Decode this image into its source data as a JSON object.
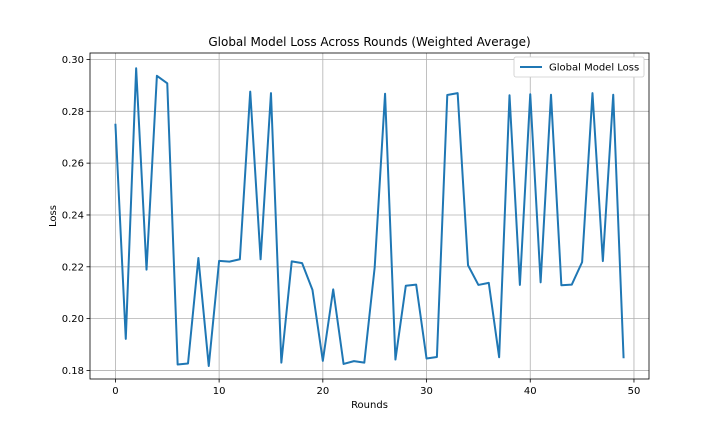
{
  "chart_data": {
    "type": "line",
    "title": "Global Model Loss Across Rounds (Weighted Average)",
    "xlabel": "Rounds",
    "ylabel": "Loss",
    "xlim": [
      -2.45,
      51.45
    ],
    "ylim": [
      0.1767,
      0.3025
    ],
    "xticks": [
      0,
      10,
      20,
      30,
      40,
      50
    ],
    "yticks": [
      0.18,
      0.2,
      0.22,
      0.24,
      0.26,
      0.28,
      0.3
    ],
    "ytick_labels": [
      "0.18",
      "0.20",
      "0.22",
      "0.24",
      "0.26",
      "0.28",
      "0.30"
    ],
    "grid": true,
    "legend_position": "upper-right",
    "series": [
      {
        "name": "Global Model Loss",
        "color": "#1f77b4",
        "x": [
          0,
          1,
          2,
          3,
          4,
          5,
          6,
          7,
          8,
          9,
          10,
          11,
          12,
          13,
          14,
          15,
          16,
          17,
          18,
          19,
          20,
          21,
          22,
          23,
          24,
          25,
          26,
          27,
          28,
          29,
          30,
          31,
          32,
          33,
          34,
          35,
          36,
          37,
          38,
          39,
          40,
          41,
          42,
          43,
          44,
          45,
          46,
          47,
          48,
          49
        ],
        "values": [
          0.2752,
          0.1922,
          0.2966,
          0.2189,
          0.2937,
          0.2908,
          0.1823,
          0.1827,
          0.2234,
          0.1817,
          0.2223,
          0.222,
          0.2229,
          0.2876,
          0.2229,
          0.287,
          0.183,
          0.2221,
          0.2214,
          0.2111,
          0.1837,
          0.2113,
          0.1825,
          0.1836,
          0.183,
          0.2198,
          0.2868,
          0.1842,
          0.2127,
          0.2131,
          0.1846,
          0.1852,
          0.2863,
          0.287,
          0.2206,
          0.213,
          0.2138,
          0.1851,
          0.2862,
          0.213,
          0.2866,
          0.214,
          0.2864,
          0.2129,
          0.2131,
          0.2218,
          0.287,
          0.2222,
          0.2864,
          0.1847
        ]
      }
    ]
  }
}
